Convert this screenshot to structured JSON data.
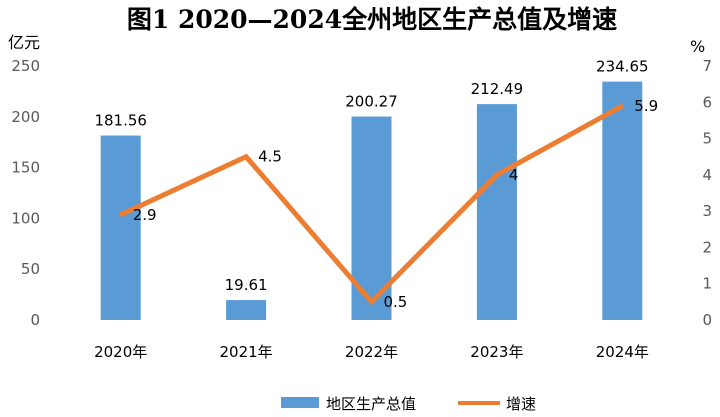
{
  "chart_data": {
    "type": "bar",
    "title": "图1   2020—2024全州地区生产总值及增速",
    "categories": [
      "2020年",
      "2021年",
      "2022年",
      "2023年",
      "2024年"
    ],
    "series": [
      {
        "name": "地区生产总值",
        "type": "bar",
        "axis": "left",
        "values": [
          181.56,
          19.61,
          200.27,
          212.49,
          234.65
        ],
        "labels": [
          "181.56",
          "19.61",
          "200.27",
          "212.49",
          "234.65"
        ],
        "color": "#5B9BD5"
      },
      {
        "name": "增速",
        "type": "line",
        "axis": "right",
        "values": [
          2.9,
          4.5,
          0.5,
          4,
          5.9
        ],
        "labels": [
          "2.9",
          "4.5",
          "0.5",
          "4",
          "5.9"
        ],
        "color": "#ED7D31"
      }
    ],
    "ylabel": "亿元",
    "y2label": "%",
    "ylim": [
      0,
      250
    ],
    "y2lim": [
      0,
      7
    ],
    "yticks": [
      "0",
      "50",
      "100",
      "150",
      "200",
      "250"
    ],
    "y2ticks": [
      "0",
      "1",
      "2",
      "3",
      "4",
      "5",
      "6",
      "7"
    ],
    "grid": false,
    "legend": "bottom"
  }
}
